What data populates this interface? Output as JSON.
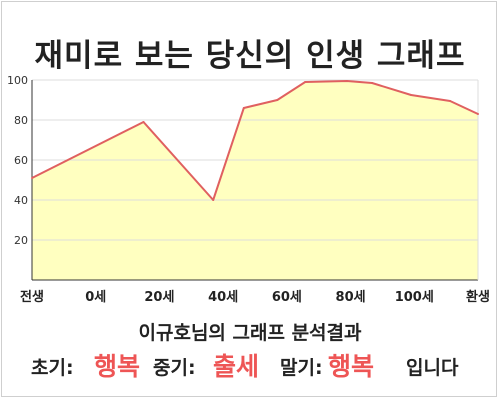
{
  "header": {
    "title": "재미로 보는 당신의 인생 그래프"
  },
  "chart_data": {
    "type": "area",
    "title": "재미로 보는 당신의 인생 그래프",
    "xlabel": "",
    "ylabel": "",
    "x_ticks": [
      "전생",
      "0세",
      "20세",
      "40세",
      "60세",
      "80세",
      "100세",
      "환생"
    ],
    "y_ticks": [
      "20",
      "40",
      "60",
      "80",
      "100"
    ],
    "ylim": [
      0,
      100
    ],
    "x": [
      -40,
      0,
      25,
      36,
      48,
      58,
      73,
      82,
      96,
      110,
      120
    ],
    "values": [
      51,
      79,
      40,
      86,
      90,
      99,
      99.5,
      98.5,
      92.5,
      89.5,
      83
    ],
    "fill_color": "#ffffc0",
    "line_color": "#e06060",
    "grid": true
  },
  "summary": {
    "text": "이규호님의 그래프 분석결과"
  },
  "result": {
    "early_label": "초기:",
    "early_value": "행복",
    "middle_label": "중기:",
    "middle_value": "출세",
    "late_label": "말기:",
    "late_value": "행복",
    "suffix": "입니다",
    "highlight_color": "#ee5555"
  }
}
